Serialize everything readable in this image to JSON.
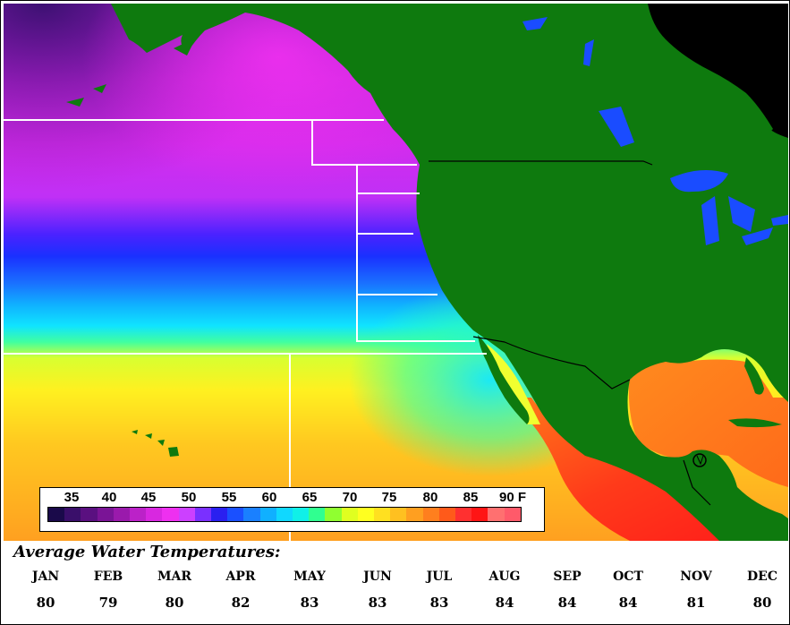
{
  "legend": {
    "ticks": [
      "35",
      "40",
      "45",
      "50",
      "55",
      "60",
      "65",
      "70",
      "75",
      "80",
      "85",
      "90 F"
    ],
    "colors": [
      "#1a0a4a",
      "#3a0f6a",
      "#5a1080",
      "#7a1496",
      "#9a1aac",
      "#bb22c8",
      "#d828e0",
      "#ee30f0",
      "#cc40ff",
      "#7a30ff",
      "#2a20f0",
      "#1a50ff",
      "#1a80ff",
      "#10b0ff",
      "#10d8ff",
      "#10f0e8",
      "#30ff90",
      "#90ff30",
      "#e0ff20",
      "#ffff20",
      "#ffe020",
      "#ffc020",
      "#ff9f20",
      "#ff7f1e",
      "#ff5a1a",
      "#ff3030",
      "#ff1515",
      "#ff7070",
      "#ff5a6a"
    ]
  },
  "panel": {
    "title": "Average Water Temperatures:",
    "months": [
      {
        "name": "JAN",
        "value": "80"
      },
      {
        "name": "FEB",
        "value": "79"
      },
      {
        "name": "MAR",
        "value": "80"
      },
      {
        "name": "APR",
        "value": "82"
      },
      {
        "name": "MAY",
        "value": "83"
      },
      {
        "name": "JUN",
        "value": "83"
      },
      {
        "name": "JUL",
        "value": "83"
      },
      {
        "name": "AUG",
        "value": "84"
      },
      {
        "name": "SEP",
        "value": "84"
      },
      {
        "name": "OCT",
        "value": "84"
      },
      {
        "name": "NOV",
        "value": "81"
      },
      {
        "name": "DEC",
        "value": "80"
      }
    ]
  },
  "map_colors": {
    "land": "#0e7a0e",
    "lakes": "#1a4cff",
    "borders": "#000000",
    "grid_lines": "#ffffff",
    "unmapped": "#000000"
  }
}
